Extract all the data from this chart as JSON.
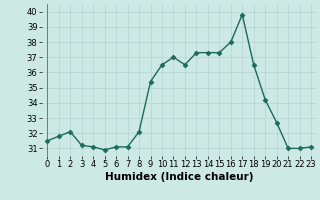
{
  "x": [
    0,
    1,
    2,
    3,
    4,
    5,
    6,
    7,
    8,
    9,
    10,
    11,
    12,
    13,
    14,
    15,
    16,
    17,
    18,
    19,
    20,
    21,
    22,
    23
  ],
  "y": [
    31.5,
    31.8,
    32.1,
    31.2,
    31.1,
    30.9,
    31.1,
    31.1,
    32.1,
    35.4,
    36.5,
    37.0,
    36.5,
    37.3,
    37.3,
    37.3,
    38.0,
    39.8,
    36.5,
    34.2,
    32.7,
    31.0,
    31.0,
    31.1
  ],
  "line_color": "#1a6b5a",
  "marker": "D",
  "marker_size": 2.5,
  "bg_color": "#cce9e4",
  "grid_color": "#b8d8d3",
  "xlabel": "Humidex (Indice chaleur)",
  "xlim": [
    -0.5,
    23.5
  ],
  "ylim": [
    30.5,
    40.5
  ],
  "yticks": [
    31,
    32,
    33,
    34,
    35,
    36,
    37,
    38,
    39,
    40
  ],
  "xticks": [
    0,
    1,
    2,
    3,
    4,
    5,
    6,
    7,
    8,
    9,
    10,
    11,
    12,
    13,
    14,
    15,
    16,
    17,
    18,
    19,
    20,
    21,
    22,
    23
  ],
  "tick_fontsize": 6,
  "xlabel_fontsize": 7.5,
  "line_width": 1.0
}
